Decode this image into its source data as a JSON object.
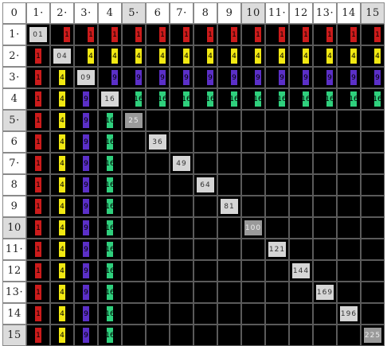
{
  "corner_label": "0",
  "headers": [
    "1·",
    "2·",
    "3·",
    "4",
    "5·",
    "6",
    "7·",
    "8",
    "9",
    "10",
    "11·",
    "12",
    "13·",
    "14",
    "15"
  ],
  "shaded_headers": [
    5,
    10,
    15
  ],
  "colors": {
    "1": "#cc1b1b",
    "4": "#f1e812",
    "9": "#5b2fc8",
    "16": "#2fd07d",
    "grid_bg": "#000000",
    "header_bg": "#ffffff",
    "header_shade": "#dcdcdc"
  },
  "squares": [
    "01",
    "04",
    "09",
    "16",
    "25",
    "36",
    "49",
    "64",
    "81",
    "100",
    "121",
    "144",
    "169",
    "196",
    "225"
  ]
}
